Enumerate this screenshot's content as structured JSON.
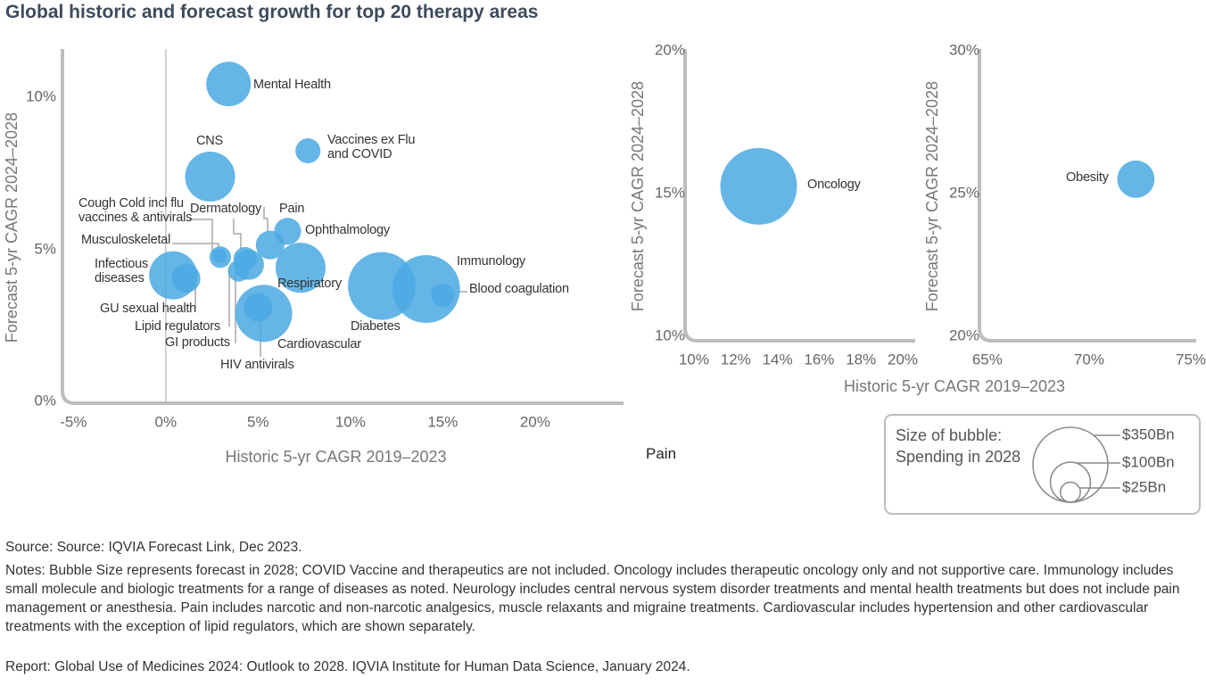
{
  "title": "Global historic and forecast growth for top 20 therapy areas",
  "chart_data": [
    {
      "type": "bubble",
      "ylabel": "Forecast 5-yr CAGR 2024–2028",
      "xlabel": "Historic 5-yr CAGR 2019–2023",
      "color": "#4aa9e2",
      "labels": [
        "Mental Health",
        "Vaccines ex Flu and COVID",
        "CNS",
        "Cough Cold incl flu vaccines & antivirals",
        "Musculoskeletal",
        "Dermatology",
        "Pain",
        "Ophthalmology",
        "Respiratory",
        "Infectious diseases",
        "GU sexual health",
        "Lipid regulators",
        "GI products",
        "HIV antivirals",
        "Cardiovascular",
        "Diabetes",
        "Immunology",
        "Blood coagulation"
      ],
      "x": [
        3.4,
        7.7,
        2.4,
        2.95,
        2.9,
        4.3,
        5.65,
        6.6,
        7.3,
        0.4,
        1.1,
        4.5,
        3.95,
        5.0,
        5.3,
        11.7,
        14.1,
        15.0
      ],
      "values": [
        10.45,
        8.25,
        7.4,
        4.75,
        4.8,
        4.7,
        5.15,
        5.6,
        4.4,
        4.15,
        4.05,
        4.5,
        4.3,
        3.1,
        2.9,
        3.8,
        3.7,
        3.5
      ],
      "sizes": [
        124,
        39,
        156,
        29,
        13,
        34,
        51,
        45,
        156,
        145,
        51,
        57,
        29,
        51,
        203,
        286,
        286,
        34
      ],
      "xlim": [
        -5.5,
        24.5
      ],
      "xticks": [
        {
          "value": -5,
          "label": "-5%"
        },
        {
          "value": 0,
          "label": "0%"
        },
        {
          "value": 5,
          "label": "5%"
        },
        {
          "value": 10,
          "label": "10%"
        },
        {
          "value": 15,
          "label": "15%"
        },
        {
          "value": 20,
          "label": "20%"
        }
      ],
      "ylim": [
        0,
        11.6
      ],
      "yticks": [
        {
          "value": 0,
          "label": "0%"
        },
        {
          "value": 5,
          "label": "5%"
        },
        {
          "value": 10,
          "label": "10%"
        }
      ]
    },
    {
      "type": "bubble",
      "ylabel": "Forecast 5-yr CAGR 2024–2028",
      "color": "#4aa9e2",
      "labels": [
        "Oncology"
      ],
      "x": [
        13.1
      ],
      "values": [
        15.25
      ],
      "sizes": [
        367
      ],
      "xlim": [
        9.66,
        20.34
      ],
      "xticks": [
        {
          "value": 10,
          "label": "10%"
        },
        {
          "value": 12,
          "label": "12%"
        },
        {
          "value": 14,
          "label": "14%"
        },
        {
          "value": 16,
          "label": "16%"
        },
        {
          "value": 18,
          "label": "18%"
        },
        {
          "value": 20,
          "label": "20%"
        }
      ],
      "ylim": [
        9.9,
        20.06
      ],
      "yticks": [
        {
          "value": 10,
          "label": "10%"
        },
        {
          "value": 15,
          "label": "15%"
        },
        {
          "value": 20,
          "label": "20%"
        }
      ]
    },
    {
      "type": "bubble",
      "ylabel": "Forecast 5-yr CAGR 2024–2028",
      "color": "#4aa9e2",
      "labels": [
        "Obesity"
      ],
      "x": [
        72.3
      ],
      "values": [
        25.5
      ],
      "sizes": [
        87
      ],
      "xlim": [
        64.7,
        75
      ],
      "xticks": [
        {
          "value": 65,
          "label": "65%"
        },
        {
          "value": 70,
          "label": "70%"
        },
        {
          "value": 75,
          "label": "75%"
        }
      ],
      "ylim": [
        19.9,
        30.06
      ],
      "yticks": [
        {
          "value": 20,
          "label": "20%"
        },
        {
          "value": 25,
          "label": "25%"
        },
        {
          "value": 30,
          "label": "30%"
        }
      ]
    }
  ],
  "shared_xlabel": "Historic 5-yr CAGR 2019–2023",
  "stray_label": "Pain",
  "size_legend": {
    "title": "Size of bubble: Spending in 2028",
    "items": [
      {
        "value": 350,
        "label": "$350Bn"
      },
      {
        "value": 100,
        "label": "$100Bn"
      },
      {
        "value": 25,
        "label": "$25Bn"
      }
    ]
  },
  "footnotes": {
    "source": "Source: Source: IQVIA Forecast Link, Dec 2023.",
    "notes": "Notes: Bubble Size represents forecast in 2028; COVID Vaccine and therapeutics are not included. Oncology includes therapeutic oncology only and not supportive care. Immunology includes small molecule and biologic treatments for a range of diseases as noted. Neurology includes central nervous system disorder treatments and mental health treatments but does not include pain management or anesthesia. Pain includes narcotic and non-narcotic analgesics, muscle relaxants and migraine treatments. Cardiovascular includes hypertension and other cardiovascular treatments with the exception of lipid regulators, which are shown separately.",
    "report": "Report: Global Use of Medicines 2024: Outlook to 2028. IQVIA Institute for Human Data Science, January 2024."
  }
}
